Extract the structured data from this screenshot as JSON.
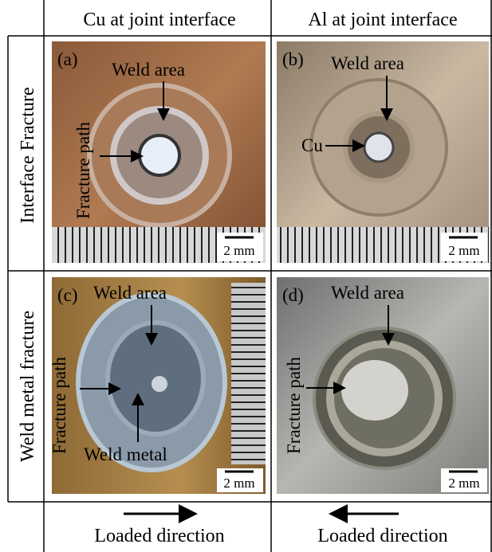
{
  "columns": [
    "Cu at joint interface",
    "Al at joint interface"
  ],
  "rows": [
    "Interface Fracture",
    "Weld metal fracture"
  ],
  "panels": [
    {
      "label": "(a)",
      "weld": "Weld area",
      "other": "Fracture path",
      "scale": "2 mm"
    },
    {
      "label": "(b)",
      "weld": "Weld area",
      "other": "Cu",
      "scale": "2 mm"
    },
    {
      "label": "(c)",
      "weld": "Weld area",
      "other": "Fracture path",
      "extra": "Weld metal",
      "scale": "2 mm"
    },
    {
      "label": "(d)",
      "weld": "Weld area",
      "other": "Fracture path",
      "scale": "2 mm"
    }
  ],
  "footer": [
    "Loaded direction",
    "Loaded direction"
  ]
}
